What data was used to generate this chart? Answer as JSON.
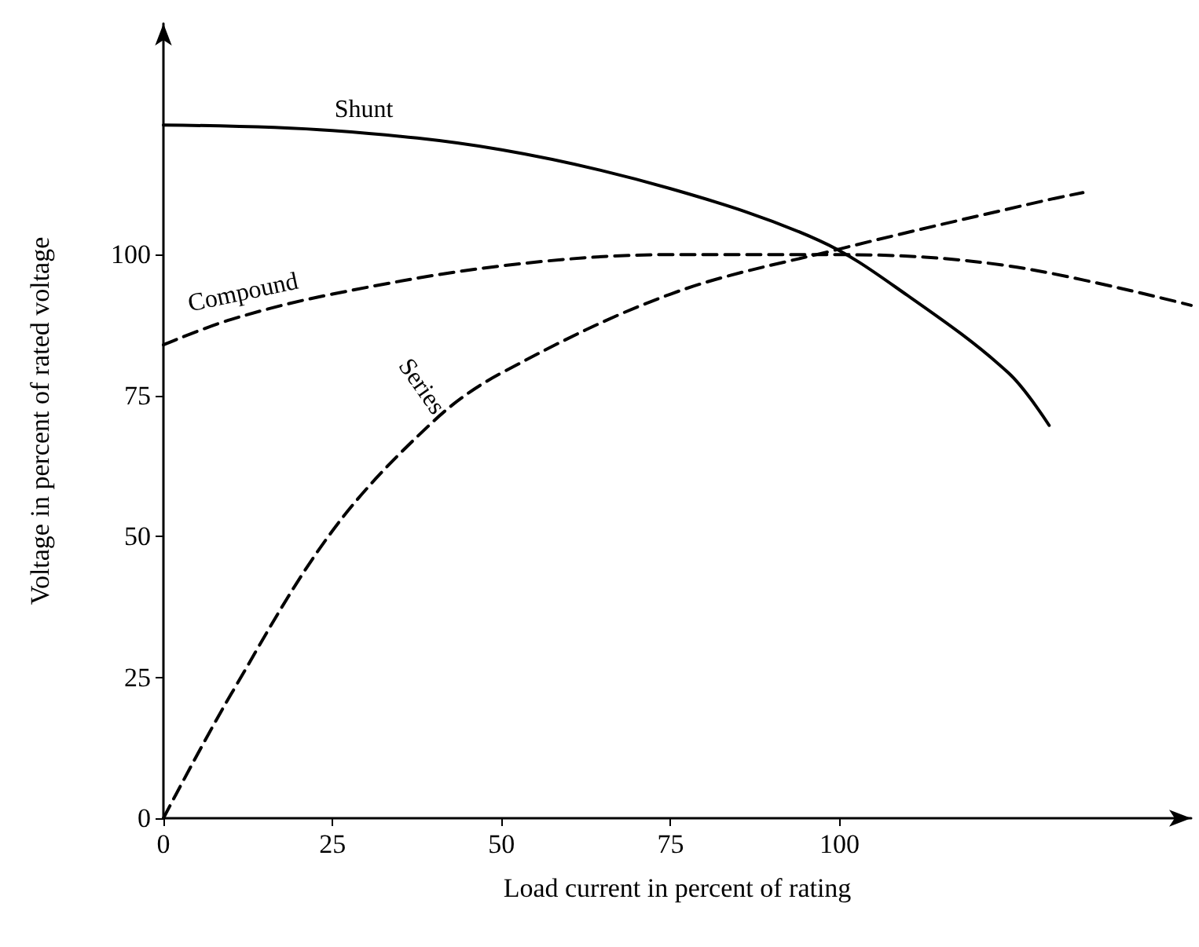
{
  "chart_data": {
    "type": "line",
    "xlabel": "Load current in percent of rating",
    "ylabel": "Voltage in percent of rated voltage",
    "xlim": [
      0,
      152
    ],
    "ylim": [
      0,
      141
    ],
    "xticks": [
      0,
      25,
      50,
      75,
      100
    ],
    "yticks": [
      0,
      25,
      50,
      75,
      100
    ],
    "grid": false,
    "legend": false,
    "marker": "none",
    "series": [
      {
        "name": "Shunt",
        "color": "#000000",
        "line_style": "solid",
        "x": [
          0,
          25,
          50,
          75,
          97,
          110,
          125,
          131
        ],
        "values": [
          123,
          122,
          118.6,
          111.7,
          102.5,
          92.8,
          79,
          69.7
        ]
      },
      {
        "name": "Compound",
        "color": "#000000",
        "line_style": "dashed",
        "x": [
          0,
          10,
          25,
          50,
          75,
          100,
          125,
          152
        ],
        "values": [
          84,
          88.5,
          93,
          98,
          100,
          100,
          98,
          91
        ]
      },
      {
        "name": "Series",
        "color": "#000000",
        "line_style": "dashed",
        "x": [
          0,
          10,
          25,
          40,
          50,
          75,
          100,
          130,
          136
        ],
        "values": [
          0,
          22,
          51,
          70.5,
          79,
          93,
          101,
          109.5,
          111
        ]
      }
    ]
  }
}
